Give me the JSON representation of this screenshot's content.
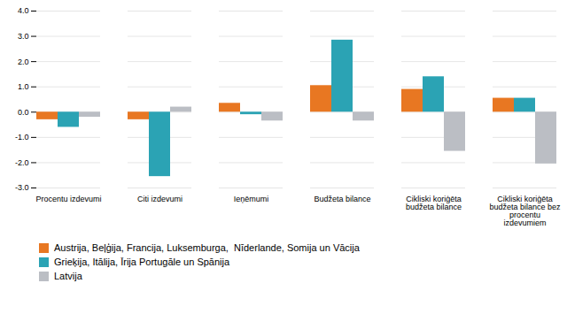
{
  "chart_data": {
    "type": "bar",
    "categories": [
      "Procentu izdevumi",
      "Citi izdevumi",
      "Ieņēmumi",
      "Budžeta bilance",
      "Cikliski koriģēta\nbudžeta bilance",
      "Cikliski koriģēta\nbudžeta bilance bez\nprocentu\nizdevumiem"
    ],
    "series": [
      {
        "name": "Austrija, Beļģija, Francija, Luksemburga,  Nīderlande, Somija un Vācija",
        "color": "#E87722",
        "values": [
          -0.3,
          -0.3,
          0.35,
          1.05,
          0.9,
          0.55
        ]
      },
      {
        "name": "Grieķija, Itālija, Īrija Portugāle un Spānija",
        "color": "#2BA3B4",
        "values": [
          -0.6,
          -2.55,
          -0.1,
          2.85,
          1.4,
          0.55
        ]
      },
      {
        "name": "Latvija",
        "color": "#BBBEC4",
        "values": [
          -0.2,
          0.2,
          -0.35,
          -0.35,
          -1.55,
          -2.05
        ]
      }
    ],
    "ylim": [
      -3.0,
      4.0
    ],
    "yticks": [
      {
        "value": -3.0,
        "label": "-3.0"
      },
      {
        "value": -2.0,
        "label": "-2.0"
      },
      {
        "value": -1.0,
        "label": "-1.0"
      },
      {
        "value": 0.0,
        "label": "0.0"
      },
      {
        "value": 1.0,
        "label": "1.0"
      },
      {
        "value": 2.0,
        "label": "2.0"
      },
      {
        "value": 3.0,
        "label": "3.0"
      },
      {
        "value": 4.0,
        "label": "4.0"
      }
    ],
    "grid": true,
    "legend": "bottom"
  }
}
